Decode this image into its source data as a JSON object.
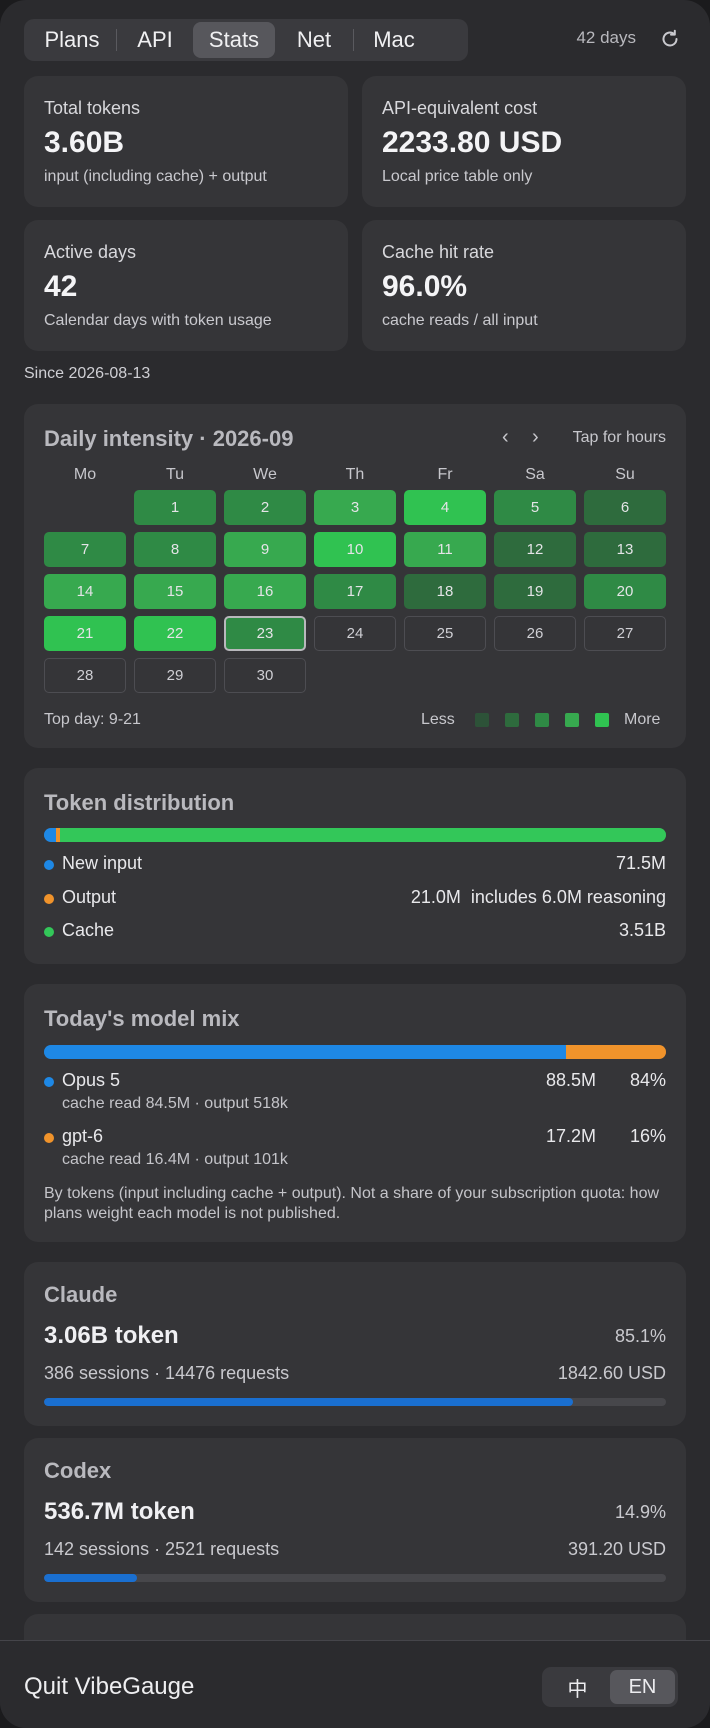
{
  "tabs": [
    {
      "label": "Plans",
      "active": false
    },
    {
      "label": "API",
      "active": false
    },
    {
      "label": "Stats",
      "active": true
    },
    {
      "label": "Net",
      "active": false
    },
    {
      "label": "Mac",
      "active": false
    }
  ],
  "range_label": "42 days",
  "stats": [
    {
      "title": "Total tokens",
      "value": "3.60B",
      "sub": "input (including cache) + output"
    },
    {
      "title": "API-equivalent cost",
      "value": "2233.80 USD",
      "sub": "Local price table only"
    },
    {
      "title": "Active days",
      "value": "42",
      "sub": "Calendar days with token usage"
    },
    {
      "title": "Cache hit rate",
      "value": "96.0%",
      "sub": "cache reads / all input"
    }
  ],
  "since": "Since 2026-08-13",
  "calendar": {
    "title": "Daily intensity · 2026-09",
    "hint": "Tap for hours",
    "weekdays": [
      "Mo",
      "Tu",
      "We",
      "Th",
      "Fr",
      "Sa",
      "Su"
    ],
    "first_weekday_index": 1,
    "days": [
      {
        "d": "1",
        "level": 3
      },
      {
        "d": "2",
        "level": 3
      },
      {
        "d": "3",
        "level": 4
      },
      {
        "d": "4",
        "level": 5
      },
      {
        "d": "5",
        "level": 3
      },
      {
        "d": "6",
        "level": 2
      },
      {
        "d": "7",
        "level": 3
      },
      {
        "d": "8",
        "level": 3
      },
      {
        "d": "9",
        "level": 4
      },
      {
        "d": "10",
        "level": 5
      },
      {
        "d": "11",
        "level": 4
      },
      {
        "d": "12",
        "level": 2
      },
      {
        "d": "13",
        "level": 2
      },
      {
        "d": "14",
        "level": 4
      },
      {
        "d": "15",
        "level": 4
      },
      {
        "d": "16",
        "level": 4
      },
      {
        "d": "17",
        "level": 3
      },
      {
        "d": "18",
        "level": 2
      },
      {
        "d": "19",
        "level": 2
      },
      {
        "d": "20",
        "level": 3
      },
      {
        "d": "21",
        "level": 5
      },
      {
        "d": "22",
        "level": 5
      },
      {
        "d": "23",
        "level": 3,
        "today": true
      },
      {
        "d": "24",
        "level": 0
      },
      {
        "d": "25",
        "level": 0
      },
      {
        "d": "26",
        "level": 0
      },
      {
        "d": "27",
        "level": 0
      },
      {
        "d": "28",
        "level": 0
      },
      {
        "d": "29",
        "level": 0
      },
      {
        "d": "30",
        "level": 0
      }
    ],
    "level_colors": [
      "transparent",
      "#2d5238",
      "#2e6b3d",
      "#2f8a45",
      "#37a94f",
      "#30c251"
    ],
    "top_day": "Top day: 9-21",
    "legend_less": "Less",
    "legend_more": "More"
  },
  "distribution": {
    "title": "Token distribution",
    "segments": [
      {
        "label": "New input",
        "value": "71.5M",
        "fraction": 0.0199,
        "color": "#1e88e5"
      },
      {
        "label": "Output",
        "value": "21.0M",
        "extra": "includes 6.0M reasoning",
        "fraction": 0.0058,
        "color": "#f0932b"
      },
      {
        "label": "Cache",
        "value": "3.51B",
        "fraction": 0.9743,
        "color": "#33c759"
      }
    ]
  },
  "model_mix": {
    "title": "Today's model mix",
    "models": [
      {
        "name": "Opus 5",
        "tokens": "88.5M",
        "pct": "84%",
        "fraction": 0.84,
        "detail": "cache read 84.5M · output 518k",
        "color": "#1e88e5"
      },
      {
        "name": "gpt-6",
        "tokens": "17.2M",
        "pct": "16%",
        "fraction": 0.16,
        "detail": "cache read 16.4M · output 101k",
        "color": "#f0932b"
      }
    ],
    "note": "By tokens (input including cache + output). Not a share of your subscription quota: how plans weight each model is not published."
  },
  "providers": [
    {
      "name": "Claude",
      "tokens": "3.06B token",
      "pct": "85.1%",
      "fraction": 0.851,
      "sessions": "386 sessions · 14476 requests",
      "cost": "1842.60 USD"
    },
    {
      "name": "Codex",
      "tokens": "536.7M token",
      "pct": "14.9%",
      "fraction": 0.149,
      "sessions": "142 sessions · 2521 requests",
      "cost": "391.20 USD"
    }
  ],
  "footer": {
    "quit_label": "Quit VibeGauge",
    "languages": [
      {
        "label": "中",
        "active": false
      },
      {
        "label": "EN",
        "active": true
      }
    ]
  }
}
